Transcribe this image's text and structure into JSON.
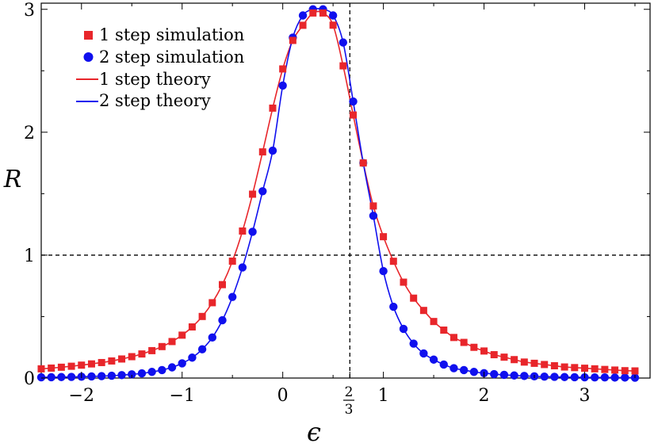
{
  "chart_data": {
    "type": "line",
    "xlabel": "ϵ",
    "ylabel": "R",
    "xlim": [
      -2.4,
      3.65
    ],
    "ylim": [
      0,
      3.05
    ],
    "x_ticks": [
      -2,
      -1,
      0,
      1,
      2,
      3
    ],
    "x_tick_labels": [
      "−2",
      "−1",
      "0",
      "1",
      "2",
      "3"
    ],
    "y_ticks": [
      0,
      1,
      2,
      3
    ],
    "y_tick_labels": [
      "0",
      "1",
      "2",
      "3"
    ],
    "special_x_tick": {
      "value": 0.6667,
      "numerator": "2",
      "denominator": "3"
    },
    "reference_lines": {
      "vertical_x": 0.6667,
      "horizontal_y": 1
    },
    "grid": false,
    "legend_position": "top-left",
    "colors": {
      "series_1": "#e8262b",
      "series_2": "#1010ee",
      "highlight_point": "#5577dd"
    },
    "series": [
      {
        "name": "1 step simulation",
        "kind": "scatter",
        "marker": "square",
        "color": "#e8262b",
        "x": [
          -2.4,
          -2.3,
          -2.2,
          -2.1,
          -2.0,
          -1.9,
          -1.8,
          -1.7,
          -1.6,
          -1.5,
          -1.4,
          -1.3,
          -1.2,
          -1.1,
          -1.0,
          -0.9,
          -0.8,
          -0.7,
          -0.6,
          -0.5,
          -0.4,
          -0.3,
          -0.2,
          -0.1,
          0.0,
          0.1,
          0.2,
          0.3,
          0.4,
          0.5,
          0.6,
          0.7,
          0.8,
          0.9,
          1.0,
          1.1,
          1.2,
          1.3,
          1.4,
          1.5,
          1.6,
          1.7,
          1.8,
          1.9,
          2.0,
          2.1,
          2.2,
          2.3,
          2.4,
          2.5,
          2.6,
          2.7,
          2.8,
          2.9,
          3.0,
          3.1,
          3.2,
          3.3,
          3.4,
          3.5
        ],
        "y": [
          0.075,
          0.081,
          0.088,
          0.096,
          0.105,
          0.115,
          0.126,
          0.139,
          0.155,
          0.174,
          0.196,
          0.223,
          0.256,
          0.297,
          0.349,
          0.416,
          0.501,
          0.613,
          0.76,
          0.951,
          1.196,
          1.496,
          1.84,
          2.196,
          2.515,
          2.747,
          2.87,
          2.97,
          2.97,
          2.871,
          2.54,
          2.14,
          1.75,
          1.4,
          1.15,
          0.95,
          0.78,
          0.65,
          0.55,
          0.46,
          0.39,
          0.33,
          0.29,
          0.25,
          0.22,
          0.19,
          0.17,
          0.15,
          0.13,
          0.12,
          0.11,
          0.1,
          0.09,
          0.085,
          0.08,
          0.075,
          0.07,
          0.065,
          0.06,
          0.058
        ]
      },
      {
        "name": "2 step simulation",
        "kind": "scatter",
        "marker": "circle",
        "color": "#1010ee",
        "x": [
          -2.4,
          -2.3,
          -2.2,
          -2.1,
          -2.0,
          -1.9,
          -1.8,
          -1.7,
          -1.6,
          -1.5,
          -1.4,
          -1.3,
          -1.2,
          -1.1,
          -1.0,
          -0.9,
          -0.8,
          -0.7,
          -0.6,
          -0.5,
          -0.4,
          -0.3,
          -0.2,
          -0.1,
          0.0,
          0.1,
          0.2,
          0.3,
          0.4,
          0.5,
          0.6,
          0.7,
          0.8,
          0.9,
          1.0,
          1.1,
          1.2,
          1.3,
          1.4,
          1.5,
          1.6,
          1.7,
          1.8,
          1.9,
          2.0,
          2.1,
          2.2,
          2.3,
          2.4,
          2.5,
          2.6,
          2.7,
          2.8,
          2.9,
          3.0,
          3.1,
          3.2,
          3.3,
          3.4,
          3.5
        ],
        "y": [
          0.006,
          0.007,
          0.008,
          0.009,
          0.011,
          0.013,
          0.016,
          0.019,
          0.024,
          0.03,
          0.038,
          0.05,
          0.065,
          0.087,
          0.12,
          0.166,
          0.234,
          0.33,
          0.47,
          0.66,
          0.9,
          1.19,
          1.52,
          1.85,
          2.38,
          2.77,
          2.95,
          3.0,
          3.0,
          2.95,
          2.73,
          2.25,
          1.75,
          1.32,
          0.87,
          0.58,
          0.4,
          0.28,
          0.2,
          0.15,
          0.11,
          0.08,
          0.065,
          0.05,
          0.04,
          0.032,
          0.026,
          0.021,
          0.017,
          0.014,
          0.012,
          0.01,
          0.008,
          0.007,
          0.006,
          0.005,
          0.005,
          0.004,
          0.004,
          0.003
        ]
      },
      {
        "name": "1 step theory",
        "kind": "line",
        "color": "#e8262b"
      },
      {
        "name": "2 step theory",
        "kind": "line",
        "color": "#1010ee"
      }
    ]
  }
}
